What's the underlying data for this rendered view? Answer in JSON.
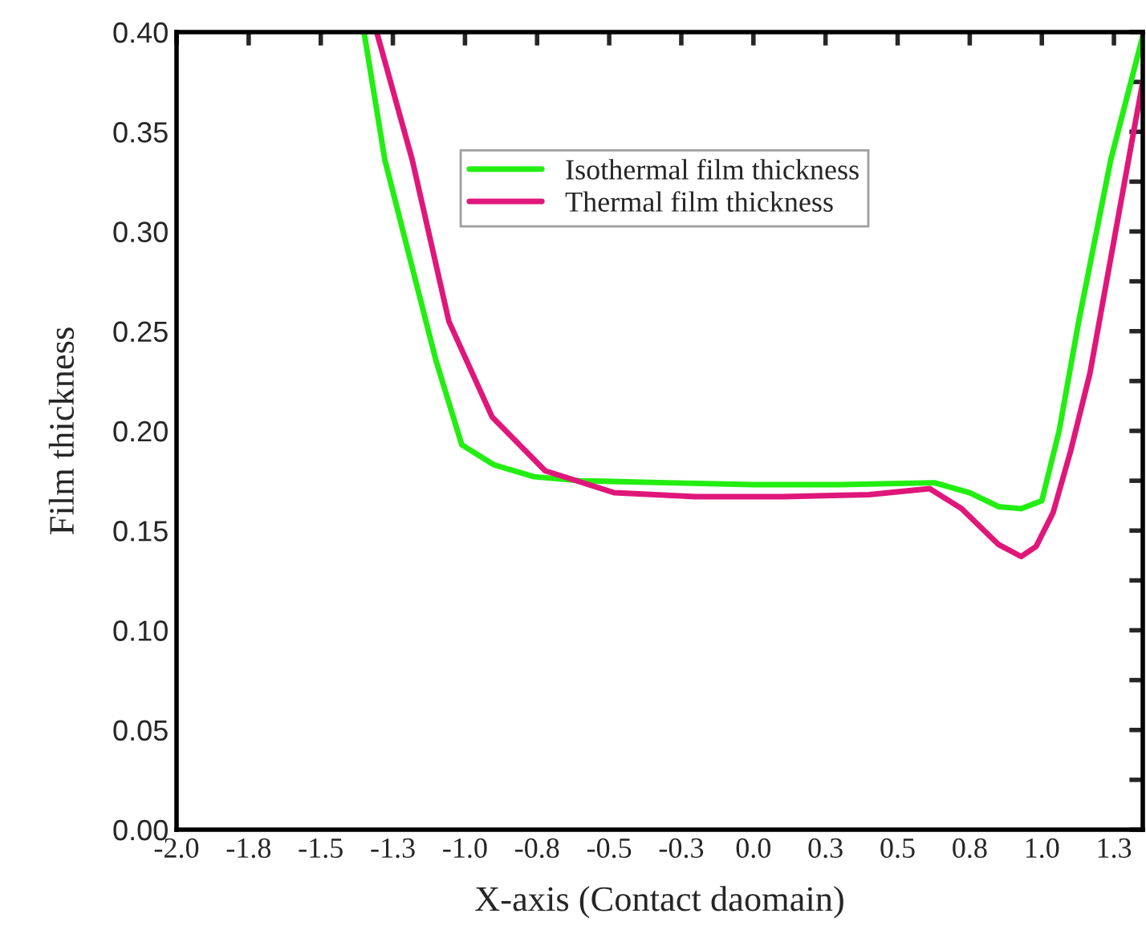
{
  "chart_data": {
    "type": "line",
    "xlabel": "X-axis (Contact daomain)",
    "ylabel": "Film thickness",
    "xlim": [
      -2.0,
      1.35
    ],
    "ylim": [
      0.0,
      0.4
    ],
    "xticks": [
      {
        "value": -2.0,
        "label": "-2.0"
      },
      {
        "value": -1.75,
        "label": "-1.8"
      },
      {
        "value": -1.5,
        "label": "-1.5"
      },
      {
        "value": -1.25,
        "label": "-1.3"
      },
      {
        "value": -1.0,
        "label": "-1.0"
      },
      {
        "value": -0.75,
        "label": "-0.8"
      },
      {
        "value": -0.5,
        "label": "-0.5"
      },
      {
        "value": -0.25,
        "label": "-0.3"
      },
      {
        "value": 0.0,
        "label": "0.0"
      },
      {
        "value": 0.25,
        "label": "0.3"
      },
      {
        "value": 0.5,
        "label": "0.5"
      },
      {
        "value": 0.75,
        "label": "0.8"
      },
      {
        "value": 1.0,
        "label": "1.0"
      },
      {
        "value": 1.25,
        "label": "1.3"
      }
    ],
    "yticks": [
      {
        "value": 0.0,
        "label": "0.00"
      },
      {
        "value": 0.025,
        "label": null
      },
      {
        "value": 0.05,
        "label": "0.05"
      },
      {
        "value": 0.075,
        "label": null
      },
      {
        "value": 0.1,
        "label": "0.10"
      },
      {
        "value": 0.125,
        "label": null
      },
      {
        "value": 0.15,
        "label": "0.15"
      },
      {
        "value": 0.175,
        "label": null
      },
      {
        "value": 0.2,
        "label": "0.20"
      },
      {
        "value": 0.225,
        "label": null
      },
      {
        "value": 0.25,
        "label": "0.25"
      },
      {
        "value": 0.275,
        "label": null
      },
      {
        "value": 0.3,
        "label": "0.30"
      },
      {
        "value": 0.325,
        "label": null
      },
      {
        "value": 0.35,
        "label": "0.35"
      },
      {
        "value": 0.375,
        "label": null
      },
      {
        "value": 0.4,
        "label": "0.40"
      }
    ],
    "grid": false,
    "legend": "top",
    "marker": "none",
    "line_style": "solid",
    "series": [
      {
        "name": "Isothermal film thickness",
        "color": "#22ee11",
        "x": [
          -1.35,
          -1.278,
          -1.183,
          -1.1,
          -1.011,
          -0.9,
          -0.761,
          -0.6,
          -0.3,
          0.0,
          0.3,
          0.628,
          0.75,
          0.85,
          0.928,
          1.0,
          1.06,
          1.128,
          1.239,
          1.35
        ],
        "values": [
          0.4,
          0.336,
          0.282,
          0.235,
          0.193,
          0.183,
          0.177,
          0.175,
          0.174,
          0.173,
          0.173,
          0.174,
          0.169,
          0.162,
          0.161,
          0.165,
          0.2,
          0.255,
          0.336,
          0.398
        ]
      },
      {
        "name": "Thermal film thickness",
        "color": "#e0177a",
        "x": [
          -1.306,
          -1.183,
          -1.056,
          -0.906,
          -0.722,
          -0.483,
          -0.2,
          0.1,
          0.4,
          0.611,
          0.722,
          0.85,
          0.928,
          0.98,
          1.039,
          1.1,
          1.167,
          1.317,
          1.35
        ],
        "values": [
          0.4,
          0.336,
          0.255,
          0.207,
          0.18,
          0.169,
          0.167,
          0.167,
          0.168,
          0.171,
          0.161,
          0.143,
          0.137,
          0.142,
          0.159,
          0.19,
          0.229,
          0.349,
          0.375
        ]
      }
    ]
  }
}
